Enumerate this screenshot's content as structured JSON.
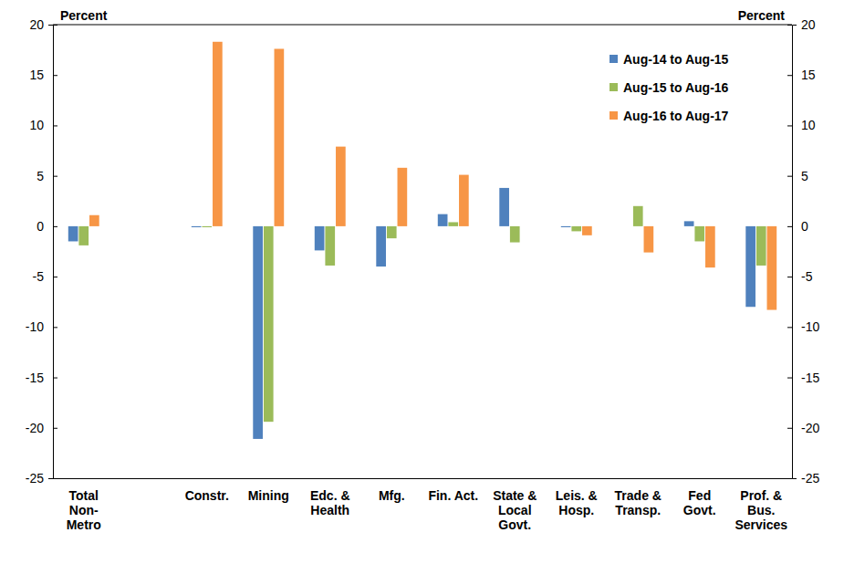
{
  "chart_data": {
    "type": "bar",
    "y_label": "Percent",
    "y2_label": "Percent",
    "categories": [
      "Total\nNon-\nMetro",
      null,
      "Constr.",
      "Mining",
      "Edc. &\nHealth",
      "Mfg.",
      "Fin. Act.",
      "State &\nLocal\nGovt.",
      "Leis. &\nHosp.",
      "Trade &\nTransp.",
      "Fed\nGovt.",
      "Prof. &\nBus.\nServices"
    ],
    "series": [
      {
        "name": "Aug-14 to Aug-15",
        "color": "#4f81bd",
        "values": [
          -1.5,
          null,
          -0.1,
          -21.1,
          -2.4,
          -4.0,
          1.2,
          3.8,
          -0.1,
          0,
          0.5,
          -8.0
        ]
      },
      {
        "name": "Aug-15 to Aug-16",
        "color": "#9bbb59",
        "values": [
          -1.9,
          null,
          -0.1,
          -19.4,
          -3.9,
          -1.2,
          0.4,
          -1.6,
          -0.5,
          2.0,
          -1.5,
          -3.9
        ]
      },
      {
        "name": "Aug-16 to Aug-17",
        "color": "#f79646",
        "values": [
          1.1,
          null,
          18.3,
          17.6,
          7.9,
          5.8,
          5.1,
          0,
          -0.9,
          -2.6,
          -4.1,
          -8.3
        ]
      }
    ],
    "ylim": [
      -25,
      20
    ],
    "yticks": [
      -25,
      -20,
      -15,
      -10,
      -5,
      0,
      5,
      10,
      15,
      20
    ],
    "y2lim": [
      -25,
      20
    ],
    "y2ticks": [
      -25,
      -20,
      -15,
      -10,
      -5,
      0,
      5,
      10,
      15,
      20
    ],
    "grid": false,
    "legend": "upper right"
  }
}
